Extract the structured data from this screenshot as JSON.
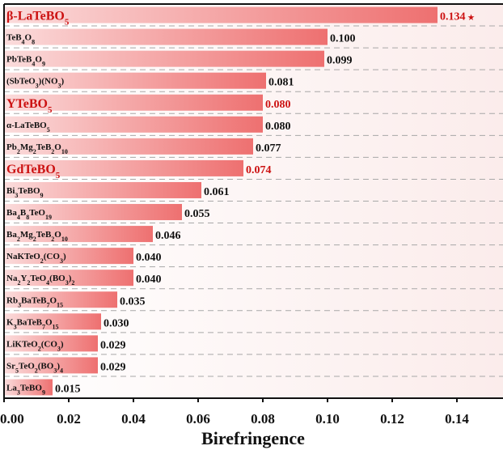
{
  "chart_data": {
    "type": "bar",
    "orientation": "horizontal",
    "categories": [
      "β-LaTeBO5",
      "TeB4O8",
      "PbTeB4O9",
      "(SbTeO3)(NO3)",
      "YTeBO5",
      "α-LaTeBO5",
      "Pb2Mg2TeB2O10",
      "GdTeBO5",
      "Bi3TeBO9",
      "Ba4B8TeO19",
      "Ba2Mg2TeB2O10",
      "NaKTeO2(CO3)",
      "Na2Y2TeO4(BO3)2",
      "Rb3BaTeB7O15",
      "K3BaTeB7O15",
      "LiKTeO2(CO3)",
      "Sr5TeO2(BO3)4",
      "La3TeBO9"
    ],
    "labels": [
      [
        [
          "β-LaTeBO",
          ""
        ],
        [
          "5",
          "sub"
        ]
      ],
      [
        [
          "TeB",
          ""
        ],
        [
          "4",
          "sub"
        ],
        [
          "O",
          ""
        ],
        [
          "8",
          "sub"
        ]
      ],
      [
        [
          "PbTeB",
          ""
        ],
        [
          "4",
          "sub"
        ],
        [
          "O",
          ""
        ],
        [
          "9",
          "sub"
        ]
      ],
      [
        [
          "(SbTeO",
          ""
        ],
        [
          "3",
          "sub"
        ],
        [
          ")(NO",
          ""
        ],
        [
          "3",
          "sub"
        ],
        [
          ")",
          ""
        ]
      ],
      [
        [
          "YTeBO",
          ""
        ],
        [
          "5",
          "sub"
        ]
      ],
      [
        [
          "α-LaTeBO",
          ""
        ],
        [
          "5",
          "sub"
        ]
      ],
      [
        [
          "Pb",
          ""
        ],
        [
          "2",
          "sub"
        ],
        [
          "Mg",
          ""
        ],
        [
          "2",
          "sub"
        ],
        [
          "TeB",
          ""
        ],
        [
          "2",
          "sub"
        ],
        [
          "O",
          ""
        ],
        [
          "10",
          "sub"
        ]
      ],
      [
        [
          "GdTeBO",
          ""
        ],
        [
          "5",
          "sub"
        ]
      ],
      [
        [
          "Bi",
          ""
        ],
        [
          "3",
          "sub"
        ],
        [
          "TeBO",
          ""
        ],
        [
          "9",
          "sub"
        ]
      ],
      [
        [
          "Ba",
          ""
        ],
        [
          "4",
          "sub"
        ],
        [
          "B",
          ""
        ],
        [
          "8",
          "sub"
        ],
        [
          "TeO",
          ""
        ],
        [
          "19",
          "sub"
        ]
      ],
      [
        [
          "Ba",
          ""
        ],
        [
          "2",
          "sub"
        ],
        [
          "Mg",
          ""
        ],
        [
          "2",
          "sub"
        ],
        [
          "TeB",
          ""
        ],
        [
          "2",
          "sub"
        ],
        [
          "O",
          ""
        ],
        [
          "10",
          "sub"
        ]
      ],
      [
        [
          "NaKTeO",
          ""
        ],
        [
          "2",
          "sub"
        ],
        [
          "(CO",
          ""
        ],
        [
          "3",
          "sub"
        ],
        [
          ")",
          ""
        ]
      ],
      [
        [
          "Na",
          ""
        ],
        [
          "2",
          "sub"
        ],
        [
          "Y",
          ""
        ],
        [
          "2",
          "sub"
        ],
        [
          "TeO",
          ""
        ],
        [
          "4",
          "sub"
        ],
        [
          "(BO",
          ""
        ],
        [
          "3",
          "sub"
        ],
        [
          ")",
          ""
        ],
        [
          "2",
          "sub"
        ]
      ],
      [
        [
          "Rb",
          ""
        ],
        [
          "3",
          "sub"
        ],
        [
          "BaTeB",
          ""
        ],
        [
          "7",
          "sub"
        ],
        [
          "O",
          ""
        ],
        [
          "15",
          "sub"
        ]
      ],
      [
        [
          "K",
          ""
        ],
        [
          "3",
          "sub"
        ],
        [
          "BaTeB",
          ""
        ],
        [
          "7",
          "sub"
        ],
        [
          "O",
          ""
        ],
        [
          "15",
          "sub"
        ]
      ],
      [
        [
          "LiKTeO",
          ""
        ],
        [
          "2",
          "sub"
        ],
        [
          "(CO",
          ""
        ],
        [
          "3",
          "sub"
        ],
        [
          ")",
          ""
        ]
      ],
      [
        [
          "Sr",
          ""
        ],
        [
          "5",
          "sub"
        ],
        [
          "TeO",
          ""
        ],
        [
          "2",
          "sub"
        ],
        [
          "(BO",
          ""
        ],
        [
          "3",
          "sub"
        ],
        [
          ")",
          ""
        ],
        [
          "4",
          "sub"
        ]
      ],
      [
        [
          "La",
          ""
        ],
        [
          "3",
          "sub"
        ],
        [
          "TeBO",
          ""
        ],
        [
          "9",
          "sub"
        ]
      ]
    ],
    "values": [
      0.134,
      0.1,
      0.099,
      0.081,
      0.08,
      0.08,
      0.077,
      0.074,
      0.061,
      0.055,
      0.046,
      0.04,
      0.04,
      0.035,
      0.03,
      0.029,
      0.029,
      0.015
    ],
    "value_labels": [
      "0.134",
      "0.100",
      "0.099",
      "0.081",
      "0.080",
      "0.080",
      "0.077",
      "0.074",
      "0.061",
      "0.055",
      "0.046",
      "0.040",
      "0.040",
      "0.035",
      "0.030",
      "0.029",
      "0.029",
      "0.015"
    ],
    "highlighted": [
      "β-LaTeBO5",
      "YTeBO5",
      "GdTeBO5"
    ],
    "highlight_color": "#cc1111",
    "bar_color_strong": "#ee7070",
    "bar_color_light": "#fbdcdc",
    "star_marker": "★",
    "xlabel": "Birefringence",
    "ylabel": "",
    "xlim": [
      0.0,
      0.15
    ],
    "xticks": [
      "0.00",
      "0.02",
      "0.04",
      "0.06",
      "0.08",
      "0.10",
      "0.12",
      "0.14"
    ],
    "grid": "horizontal dashed"
  }
}
